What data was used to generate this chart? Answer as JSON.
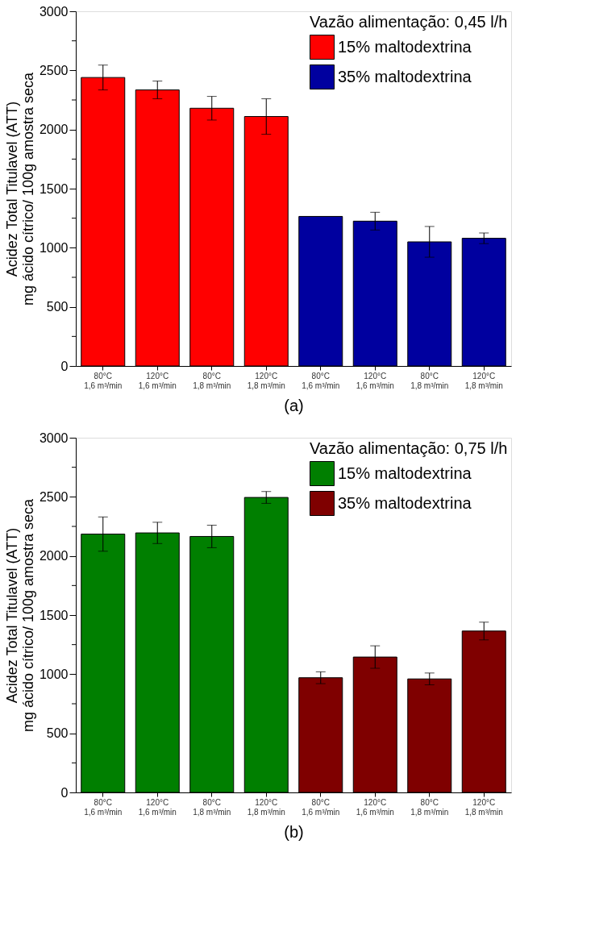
{
  "chart_data": [
    {
      "type": "bar",
      "xlabel": "(a)",
      "ylabel": "Acidez Total Titulavel (ATT)\nmg ácido cítrico/ 100g amostra seca",
      "legend_title": "Vazão alimentação: 0,45 l/h",
      "legend": "top right",
      "grid": false,
      "categories": [
        "80°C\n1,6 m³/min",
        "120°C\n1,6 m³/min",
        "80°C\n1,8 m³/min",
        "120°C\n1,8 m³/min",
        "80°C\n1,6 m³/min",
        "120°C\n1,6 m³/min",
        "80°C\n1,8 m³/min",
        "120°C\n1,8 m³/min"
      ],
      "ylim": [
        0,
        3000
      ],
      "yticks": [
        0,
        {
          "value": 250,
          "label": null
        },
        500,
        {
          "value": 750,
          "label": null
        },
        1000,
        {
          "value": 1250,
          "label": null
        },
        1500,
        {
          "value": 1750,
          "label": null
        },
        2000,
        {
          "value": 2250,
          "label": null
        },
        2500,
        {
          "value": 2750,
          "label": null
        },
        3000
      ],
      "series": [
        {
          "name": "15% maltodextrina",
          "color": "#ff0000",
          "values": [
            2440,
            2335,
            2180,
            2110,
            null,
            null,
            null,
            null
          ],
          "errors": [
            105,
            75,
            100,
            150,
            null,
            null,
            null,
            null
          ]
        },
        {
          "name": "35% maltodextrina",
          "color": "#00009f",
          "values": [
            null,
            null,
            null,
            null,
            1265,
            1225,
            1050,
            1080
          ],
          "errors": [
            null,
            null,
            null,
            null,
            null,
            75,
            130,
            45
          ]
        }
      ]
    },
    {
      "type": "bar",
      "xlabel": "(b)",
      "ylabel": "Acidez Total Titulavel (ATT)\nmg ácido cítrico/ 100g amostra seca",
      "legend_title": "Vazão alimentação: 0,75 l/h",
      "legend": "top right",
      "grid": false,
      "categories": [
        "80°C\n1,6 m³/min",
        "120°C\n1,6 m³/min",
        "80°C\n1,8 m³/min",
        "120°C\n1,8 m³/min",
        "80°C\n1,6 m³/min",
        "120°C\n1,6 m³/min",
        "80°C\n1,8 m³/min",
        "120°C\n1,8 m³/min"
      ],
      "ylim": [
        0,
        3000
      ],
      "yticks": [
        0,
        {
          "value": 250,
          "label": null
        },
        500,
        {
          "value": 750,
          "label": null
        },
        1000,
        {
          "value": 1250,
          "label": null
        },
        1500,
        {
          "value": 1750,
          "label": null
        },
        2000,
        {
          "value": 2250,
          "label": null
        },
        2500,
        {
          "value": 2750,
          "label": null
        },
        3000
      ],
      "series": [
        {
          "name": "15% maltodextrina",
          "color": "#007f00",
          "values": [
            2185,
            2195,
            2165,
            2495,
            null,
            null,
            null,
            null
          ],
          "errors": [
            145,
            90,
            95,
            50,
            null,
            null,
            null,
            null
          ]
        },
        {
          "name": "35% maltodextrina",
          "color": "#7f0000",
          "values": [
            null,
            null,
            null,
            null,
            970,
            1145,
            960,
            1365
          ],
          "errors": [
            null,
            null,
            null,
            null,
            50,
            95,
            50,
            75
          ]
        }
      ]
    }
  ]
}
